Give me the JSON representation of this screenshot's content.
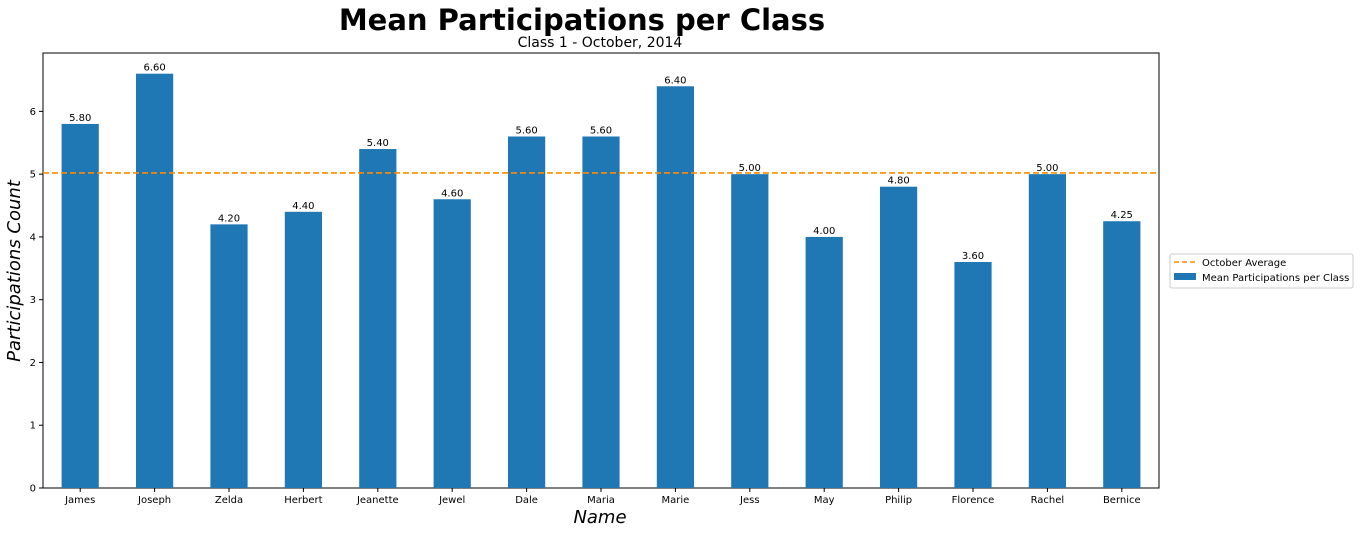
{
  "chart_data": {
    "type": "bar",
    "title": "Mean Participations per Class",
    "subtitle": "Class 1 - October, 2014",
    "xlabel": "Name",
    "ylabel": "Participations Count",
    "categories": [
      "James",
      "Joseph",
      "Zelda",
      "Herbert",
      "Jeanette",
      "Jewel",
      "Dale",
      "Maria",
      "Marie",
      "Jess",
      "May",
      "Philip",
      "Florence",
      "Rachel",
      "Bernice"
    ],
    "series": [
      {
        "name": "Mean Participations per Class",
        "color": "#1f77b4",
        "values": [
          5.8,
          6.6,
          4.2,
          4.4,
          5.4,
          4.6,
          5.6,
          5.6,
          6.4,
          5.0,
          4.0,
          4.8,
          3.6,
          5.0,
          4.25
        ],
        "value_labels": [
          "5.80",
          "6.60",
          "4.20",
          "4.40",
          "5.40",
          "4.60",
          "5.60",
          "5.60",
          "6.40",
          "5.00",
          "4.00",
          "4.80",
          "3.60",
          "5.00",
          "4.25"
        ]
      }
    ],
    "reference_line": {
      "name": "October Average",
      "value": 5.02,
      "color": "#ff8c00",
      "style": "dashed"
    },
    "ylim": [
      0,
      6.93
    ],
    "yticks": [
      "0",
      "1",
      "2",
      "3",
      "4",
      "5",
      "6"
    ],
    "grid": false,
    "legend_position": "right-outside"
  }
}
